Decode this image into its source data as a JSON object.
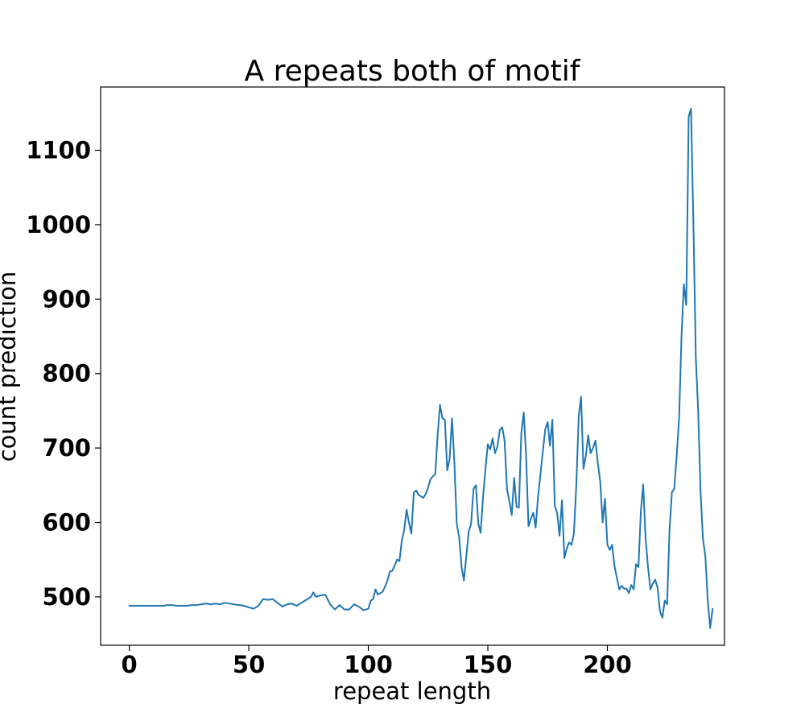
{
  "chart_data": {
    "type": "line",
    "title": "A repeats both of motif",
    "xlabel": "repeat length",
    "ylabel": "count prediction",
    "xlim": [
      -12,
      249
    ],
    "ylim": [
      435,
      1185
    ],
    "xticks": [
      0,
      50,
      100,
      150,
      200
    ],
    "xtick_labels": [
      "0",
      "50",
      "100",
      "150",
      "200"
    ],
    "yticks": [
      500,
      600,
      700,
      800,
      900,
      1000,
      1100
    ],
    "ytick_labels": [
      "500",
      "600",
      "700",
      "800",
      "900",
      "1000",
      "1100"
    ],
    "grid": false,
    "series": [
      {
        "color": "#1f77b4",
        "points": [
          [
            0,
            488
          ],
          [
            2,
            488
          ],
          [
            4,
            488
          ],
          [
            6,
            488
          ],
          [
            8,
            488
          ],
          [
            10,
            488
          ],
          [
            12,
            488
          ],
          [
            14,
            488
          ],
          [
            16,
            489
          ],
          [
            18,
            489
          ],
          [
            20,
            488
          ],
          [
            22,
            488
          ],
          [
            24,
            488
          ],
          [
            26,
            489
          ],
          [
            28,
            489
          ],
          [
            30,
            490
          ],
          [
            32,
            491
          ],
          [
            34,
            490
          ],
          [
            36,
            491
          ],
          [
            38,
            490
          ],
          [
            40,
            492
          ],
          [
            42,
            491
          ],
          [
            44,
            490
          ],
          [
            46,
            489
          ],
          [
            48,
            488
          ],
          [
            50,
            486
          ],
          [
            52,
            484
          ],
          [
            54,
            488
          ],
          [
            56,
            497
          ],
          [
            58,
            496
          ],
          [
            60,
            497
          ],
          [
            62,
            492
          ],
          [
            64,
            487
          ],
          [
            66,
            490
          ],
          [
            68,
            491
          ],
          [
            70,
            488
          ],
          [
            72,
            492
          ],
          [
            74,
            496
          ],
          [
            76,
            500
          ],
          [
            77,
            506
          ],
          [
            78,
            500
          ],
          [
            80,
            502
          ],
          [
            82,
            503
          ],
          [
            84,
            490
          ],
          [
            86,
            483
          ],
          [
            88,
            489
          ],
          [
            90,
            483
          ],
          [
            92,
            483
          ],
          [
            94,
            490
          ],
          [
            96,
            487
          ],
          [
            98,
            482
          ],
          [
            100,
            484
          ],
          [
            101,
            495
          ],
          [
            102,
            497
          ],
          [
            103,
            510
          ],
          [
            104,
            503
          ],
          [
            105,
            505
          ],
          [
            106,
            507
          ],
          [
            107,
            514
          ],
          [
            108,
            522
          ],
          [
            109,
            534
          ],
          [
            110,
            535
          ],
          [
            111,
            542
          ],
          [
            112,
            550
          ],
          [
            113,
            548
          ],
          [
            114,
            575
          ],
          [
            115,
            590
          ],
          [
            116,
            617
          ],
          [
            117,
            600
          ],
          [
            118,
            585
          ],
          [
            119,
            640
          ],
          [
            120,
            643
          ],
          [
            121,
            637
          ],
          [
            122,
            635
          ],
          [
            123,
            633
          ],
          [
            124,
            638
          ],
          [
            125,
            647
          ],
          [
            126,
            658
          ],
          [
            127,
            662
          ],
          [
            128,
            665
          ],
          [
            129,
            718
          ],
          [
            130,
            758
          ],
          [
            131,
            740
          ],
          [
            132,
            738
          ],
          [
            133,
            670
          ],
          [
            134,
            685
          ],
          [
            135,
            740
          ],
          [
            136,
            680
          ],
          [
            137,
            598
          ],
          [
            138,
            580
          ],
          [
            139,
            540
          ],
          [
            140,
            522
          ],
          [
            141,
            555
          ],
          [
            142,
            588
          ],
          [
            143,
            598
          ],
          [
            144,
            645
          ],
          [
            145,
            650
          ],
          [
            146,
            598
          ],
          [
            147,
            586
          ],
          [
            148,
            635
          ],
          [
            149,
            672
          ],
          [
            150,
            705
          ],
          [
            151,
            698
          ],
          [
            152,
            713
          ],
          [
            153,
            693
          ],
          [
            154,
            702
          ],
          [
            155,
            724
          ],
          [
            156,
            728
          ],
          [
            157,
            710
          ],
          [
            158,
            645
          ],
          [
            159,
            628
          ],
          [
            160,
            610
          ],
          [
            161,
            660
          ],
          [
            162,
            621
          ],
          [
            163,
            620
          ],
          [
            164,
            720
          ],
          [
            165,
            748
          ],
          [
            166,
            690
          ],
          [
            167,
            595
          ],
          [
            168,
            605
          ],
          [
            169,
            613
          ],
          [
            170,
            593
          ],
          [
            171,
            635
          ],
          [
            172,
            665
          ],
          [
            173,
            695
          ],
          [
            174,
            725
          ],
          [
            175,
            735
          ],
          [
            176,
            703
          ],
          [
            177,
            738
          ],
          [
            178,
            622
          ],
          [
            179,
            613
          ],
          [
            180,
            582
          ],
          [
            181,
            630
          ],
          [
            182,
            552
          ],
          [
            183,
            565
          ],
          [
            184,
            573
          ],
          [
            185,
            570
          ],
          [
            186,
            585
          ],
          [
            187,
            650
          ],
          [
            188,
            742
          ],
          [
            189,
            769
          ],
          [
            190,
            672
          ],
          [
            191,
            690
          ],
          [
            192,
            717
          ],
          [
            193,
            693
          ],
          [
            194,
            700
          ],
          [
            195,
            710
          ],
          [
            196,
            680
          ],
          [
            197,
            655
          ],
          [
            198,
            600
          ],
          [
            199,
            632
          ],
          [
            200,
            570
          ],
          [
            201,
            563
          ],
          [
            202,
            570
          ],
          [
            203,
            541
          ],
          [
            204,
            525
          ],
          [
            205,
            510
          ],
          [
            206,
            515
          ],
          [
            207,
            511
          ],
          [
            208,
            511
          ],
          [
            209,
            505
          ],
          [
            210,
            516
          ],
          [
            211,
            510
          ],
          [
            212,
            544
          ],
          [
            213,
            540
          ],
          [
            214,
            615
          ],
          [
            215,
            651
          ],
          [
            216,
            578
          ],
          [
            217,
            540
          ],
          [
            218,
            510
          ],
          [
            219,
            518
          ],
          [
            220,
            523
          ],
          [
            221,
            512
          ],
          [
            222,
            481
          ],
          [
            223,
            472
          ],
          [
            224,
            495
          ],
          [
            225,
            490
          ],
          [
            226,
            590
          ],
          [
            227,
            641
          ],
          [
            228,
            645
          ],
          [
            229,
            690
          ],
          [
            230,
            740
          ],
          [
            231,
            850
          ],
          [
            232,
            920
          ],
          [
            233,
            892
          ],
          [
            234,
            1145
          ],
          [
            235,
            1156
          ],
          [
            236,
            1000
          ],
          [
            237,
            820
          ],
          [
            238,
            750
          ],
          [
            239,
            640
          ],
          [
            240,
            577
          ],
          [
            241,
            555
          ],
          [
            242,
            495
          ],
          [
            243,
            458
          ],
          [
            244,
            484
          ]
        ]
      }
    ]
  }
}
